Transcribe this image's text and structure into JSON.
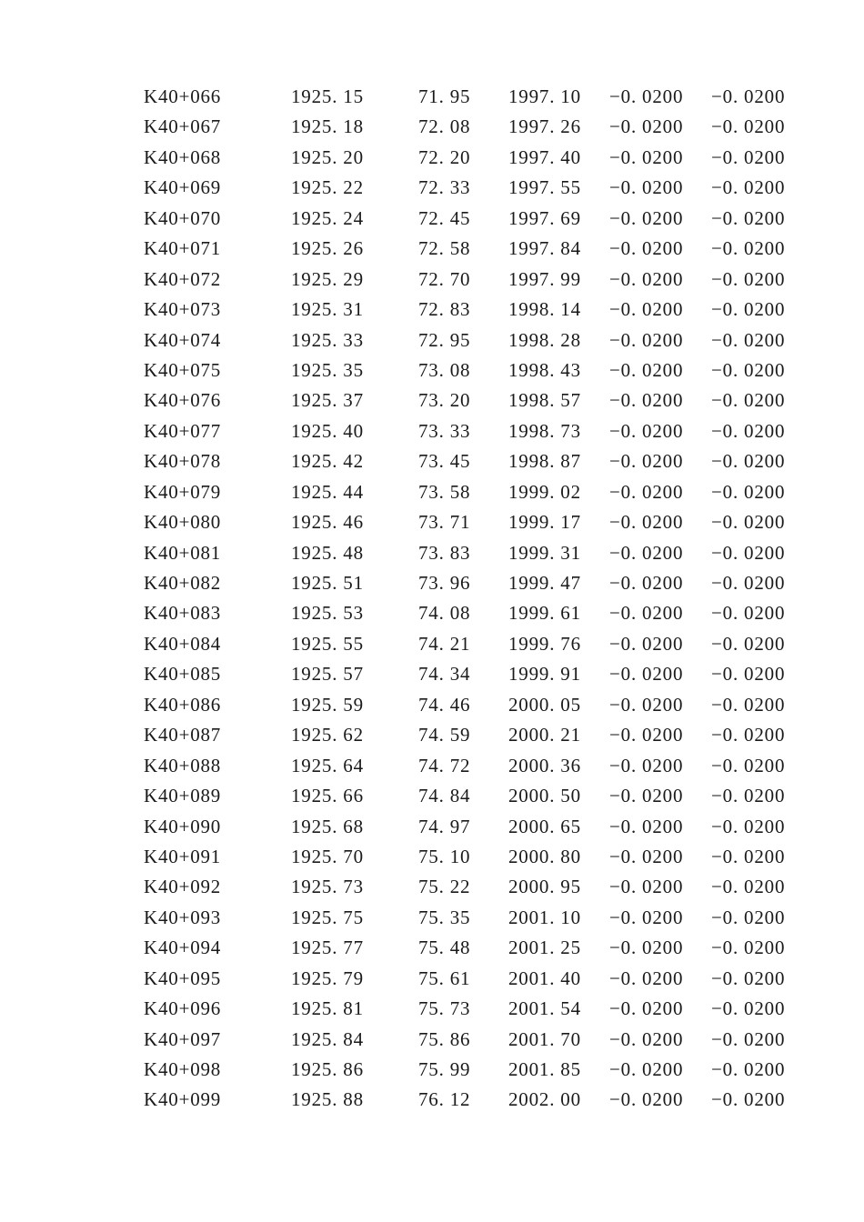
{
  "page": {
    "background": "#ffffff",
    "text_color": "#1a1a1a"
  },
  "table": {
    "rows": [
      [
        "K40+066",
        "1925. 15",
        "71. 95",
        "1997. 10",
        "−0. 0200",
        "−0. 0200"
      ],
      [
        "K40+067",
        "1925. 18",
        "72. 08",
        "1997. 26",
        "−0. 0200",
        "−0. 0200"
      ],
      [
        "K40+068",
        "1925. 20",
        "72. 20",
        "1997. 40",
        "−0. 0200",
        "−0. 0200"
      ],
      [
        "K40+069",
        "1925. 22",
        "72. 33",
        "1997. 55",
        "−0. 0200",
        "−0. 0200"
      ],
      [
        "K40+070",
        "1925. 24",
        "72. 45",
        "1997. 69",
        "−0. 0200",
        "−0. 0200"
      ],
      [
        "K40+071",
        "1925. 26",
        "72. 58",
        "1997. 84",
        "−0. 0200",
        "−0. 0200"
      ],
      [
        "K40+072",
        "1925. 29",
        "72. 70",
        "1997. 99",
        "−0. 0200",
        "−0. 0200"
      ],
      [
        "K40+073",
        "1925. 31",
        "72. 83",
        "1998. 14",
        "−0. 0200",
        "−0. 0200"
      ],
      [
        "K40+074",
        "1925. 33",
        "72. 95",
        "1998. 28",
        "−0. 0200",
        "−0. 0200"
      ],
      [
        "K40+075",
        "1925. 35",
        "73. 08",
        "1998. 43",
        "−0. 0200",
        "−0. 0200"
      ],
      [
        "K40+076",
        "1925. 37",
        "73. 20",
        "1998. 57",
        "−0. 0200",
        "−0. 0200"
      ],
      [
        "K40+077",
        "1925. 40",
        "73. 33",
        "1998. 73",
        "−0. 0200",
        "−0. 0200"
      ],
      [
        "K40+078",
        "1925. 42",
        "73. 45",
        "1998. 87",
        "−0. 0200",
        "−0. 0200"
      ],
      [
        "K40+079",
        "1925. 44",
        "73. 58",
        "1999. 02",
        "−0. 0200",
        "−0. 0200"
      ],
      [
        "K40+080",
        "1925. 46",
        "73. 71",
        "1999. 17",
        "−0. 0200",
        "−0. 0200"
      ],
      [
        "K40+081",
        "1925. 48",
        "73. 83",
        "1999. 31",
        "−0. 0200",
        "−0. 0200"
      ],
      [
        "K40+082",
        "1925. 51",
        "73. 96",
        "1999. 47",
        "−0. 0200",
        "−0. 0200"
      ],
      [
        "K40+083",
        "1925. 53",
        "74. 08",
        "1999. 61",
        "−0. 0200",
        "−0. 0200"
      ],
      [
        "K40+084",
        "1925. 55",
        "74. 21",
        "1999. 76",
        "−0. 0200",
        "−0. 0200"
      ],
      [
        "K40+085",
        "1925. 57",
        "74. 34",
        "1999. 91",
        "−0. 0200",
        "−0. 0200"
      ],
      [
        "K40+086",
        "1925. 59",
        "74. 46",
        "2000. 05",
        "−0. 0200",
        "−0. 0200"
      ],
      [
        "K40+087",
        "1925. 62",
        "74. 59",
        "2000. 21",
        "−0. 0200",
        "−0. 0200"
      ],
      [
        "K40+088",
        "1925. 64",
        "74. 72",
        "2000. 36",
        "−0. 0200",
        "−0. 0200"
      ],
      [
        "K40+089",
        "1925. 66",
        "74. 84",
        "2000. 50",
        "−0. 0200",
        "−0. 0200"
      ],
      [
        "K40+090",
        "1925. 68",
        "74. 97",
        "2000. 65",
        "−0. 0200",
        "−0. 0200"
      ],
      [
        "K40+091",
        "1925. 70",
        "75. 10",
        "2000. 80",
        "−0. 0200",
        "−0. 0200"
      ],
      [
        "K40+092",
        "1925. 73",
        "75. 22",
        "2000. 95",
        "−0. 0200",
        "−0. 0200"
      ],
      [
        "K40+093",
        "1925. 75",
        "75. 35",
        "2001. 10",
        "−0. 0200",
        "−0. 0200"
      ],
      [
        "K40+094",
        "1925. 77",
        "75. 48",
        "2001. 25",
        "−0. 0200",
        "−0. 0200"
      ],
      [
        "K40+095",
        "1925. 79",
        "75. 61",
        "2001. 40",
        "−0. 0200",
        "−0. 0200"
      ],
      [
        "K40+096",
        "1925. 81",
        "75. 73",
        "2001. 54",
        "−0. 0200",
        "−0. 0200"
      ],
      [
        "K40+097",
        "1925. 84",
        "75. 86",
        "2001. 70",
        "−0. 0200",
        "−0. 0200"
      ],
      [
        "K40+098",
        "1925. 86",
        "75. 99",
        "2001. 85",
        "−0. 0200",
        "−0. 0200"
      ],
      [
        "K40+099",
        "1925. 88",
        "76. 12",
        "2002. 00",
        "−0. 0200",
        "−0. 0200"
      ]
    ]
  }
}
